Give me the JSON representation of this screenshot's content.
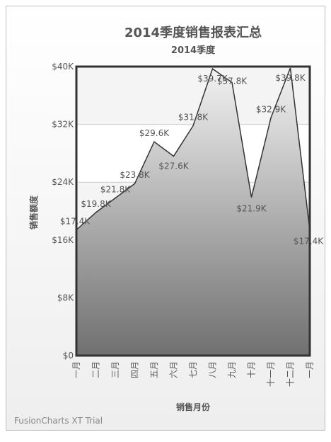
{
  "chart_data": {
    "type": "area",
    "title": "2014季度销售报表汇总",
    "subtitle": "2014季度",
    "xlabel": "销售月份",
    "ylabel": "销售额度",
    "categories": [
      "一月",
      "二月",
      "三月",
      "四月",
      "五月",
      "六月",
      "七月",
      "八月",
      "九月",
      "十月",
      "十一月",
      "十二月",
      "一月"
    ],
    "values": [
      17400,
      19800,
      21800,
      23800,
      29600,
      27600,
      31800,
      39700,
      37800,
      21900,
      32900,
      39800,
      17400
    ],
    "data_labels": [
      "$17.4K",
      "$19.8K",
      "$21.8K",
      "$23.8K",
      "$29.6K",
      "$27.6K",
      "$31.8K",
      "$39.7K",
      "$37.8K",
      "$21.9K",
      "$32.9K",
      "$39.8K",
      "$17.4K"
    ],
    "ylim": [
      0,
      40000
    ],
    "yticks": [
      0,
      8000,
      16000,
      24000,
      32000,
      40000
    ],
    "ytick_labels": [
      "$0",
      "$8K",
      "$16K",
      "$24K",
      "$32K",
      "$40K"
    ],
    "grid": true
  },
  "watermark": "FusionCharts XT Trial"
}
